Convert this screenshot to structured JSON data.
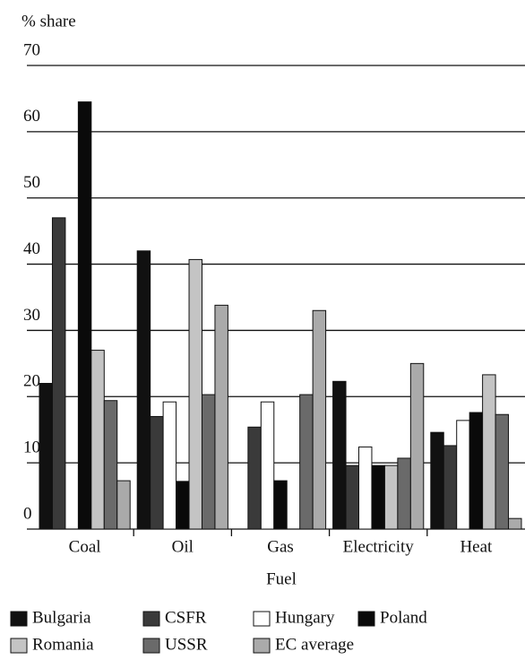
{
  "chart_data": {
    "type": "bar",
    "y_label": "% share",
    "x_label": "Fuel",
    "categories": [
      "Coal",
      "Oil",
      "Gas",
      "Electricity",
      "Heat"
    ],
    "series": [
      {
        "name": "Bulgaria",
        "color": "#111111",
        "values": [
          22,
          42,
          0,
          22.3,
          14.6
        ]
      },
      {
        "name": "CSFR",
        "color": "#3a3a3a",
        "values": [
          47,
          17,
          15.4,
          9.6,
          12.6
        ]
      },
      {
        "name": "Hungary",
        "color": "#ffffff",
        "values": [
          0,
          19.2,
          19.2,
          12.4,
          16.4
        ]
      },
      {
        "name": "Poland",
        "color": "#0a0a0a",
        "values": [
          64.5,
          7.2,
          7.3,
          9.6,
          17.6
        ]
      },
      {
        "name": "Romania",
        "color": "#c4c4c4",
        "values": [
          27,
          40.7,
          0,
          9.6,
          23.3
        ]
      },
      {
        "name": "USSR",
        "color": "#6a6a6a",
        "values": [
          19.4,
          20.3,
          20.3,
          10.7,
          17.3
        ]
      },
      {
        "name": "EC average",
        "color": "#aaaaaa",
        "values": [
          7.3,
          33.8,
          33,
          25,
          1.6
        ]
      }
    ],
    "ylim": [
      0,
      70
    ],
    "yticks": [
      0,
      10,
      20,
      30,
      40,
      50,
      60,
      70
    ],
    "grid": true,
    "legend": "bottom"
  }
}
